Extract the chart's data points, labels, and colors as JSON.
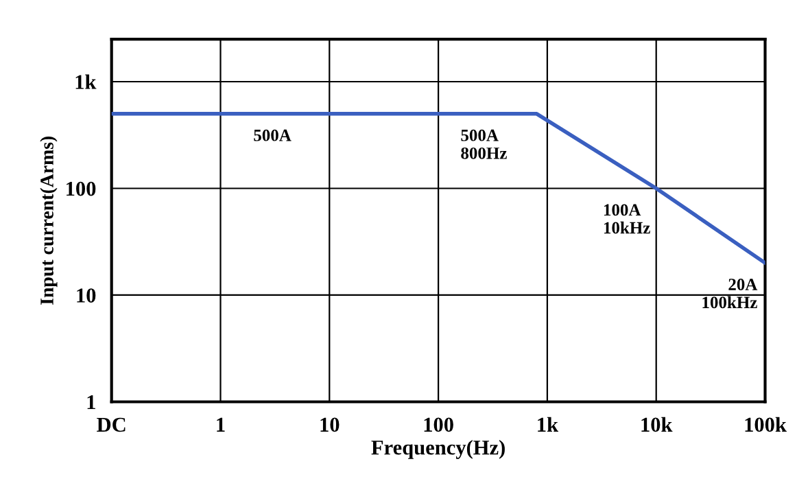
{
  "chart_data": {
    "type": "line",
    "xlabel": "Frequency(Hz)",
    "ylabel": "Input current(Arms)",
    "x": [
      0.1,
      800,
      10000,
      100000
    ],
    "series": [
      {
        "color": "#3a5fc0",
        "values": [
          500,
          500,
          100,
          20
        ]
      }
    ],
    "log": "xy",
    "xlim": [
      0.1,
      100000
    ],
    "ylim": [
      1,
      2500
    ],
    "xticks": [
      {
        "value": 0.1,
        "label": "DC"
      },
      1,
      10,
      100,
      {
        "value": 1000,
        "label": "1k"
      },
      {
        "value": 10000,
        "label": "10k"
      },
      {
        "value": 100000,
        "label": "100k"
      }
    ],
    "yticks": [
      1,
      10,
      100,
      {
        "value": 1000,
        "label": "1k"
      }
    ],
    "grid": true,
    "marker": "none",
    "line_style": "solid",
    "annotations": [
      {
        "text": "500A",
        "x": 2,
        "y": 500
      },
      {
        "text": "500A\n800Hz",
        "x": 800,
        "y": 500
      },
      {
        "text": "100A\n10kHz",
        "x": 10000,
        "y": 100
      },
      {
        "text": "20A\n100kHz",
        "x": 100000,
        "y": 20
      }
    ]
  }
}
